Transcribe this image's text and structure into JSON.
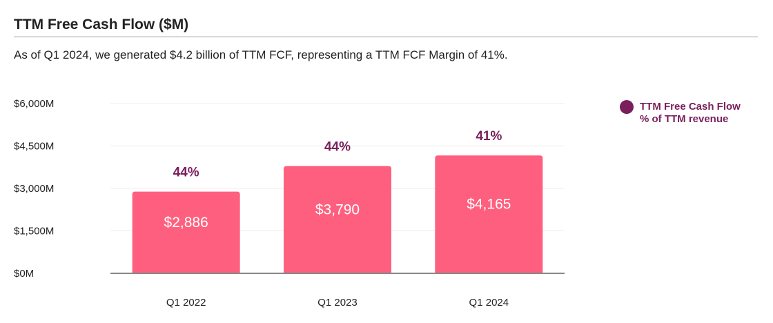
{
  "header": {
    "title": "TTM Free Cash Flow ($M)",
    "subtitle": "As of Q1 2024, we generated $4.2 billion of TTM FCF, representing a TTM FCF Margin of 41%."
  },
  "legend": {
    "line1": "TTM Free Cash Flow",
    "line2": "% of TTM revenue"
  },
  "colors": {
    "bar": "#ff5f7e",
    "accent": "#7a1f5c",
    "grid": "#ececec",
    "axis": "#888888",
    "text": "#222222"
  },
  "chart_data": {
    "type": "bar",
    "title": "TTM Free Cash Flow ($M)",
    "categories": [
      "Q1 2022",
      "Q1 2023",
      "Q1 2024"
    ],
    "series": [
      {
        "name": "TTM Free Cash Flow",
        "values": [
          2886,
          3790,
          4165
        ],
        "value_labels": [
          "$2,886",
          "$3,790",
          "$4,165"
        ],
        "margin_labels": [
          "44%",
          "44%",
          "41%"
        ]
      }
    ],
    "ylim": [
      0,
      6000
    ],
    "yticks": [
      0,
      1500,
      3000,
      4500,
      6000
    ],
    "ytick_labels": [
      "$0M",
      "$1,500M",
      "$3,000M",
      "$4,500M",
      "$6,000M"
    ],
    "grid": true,
    "legend_position": "top-right"
  }
}
